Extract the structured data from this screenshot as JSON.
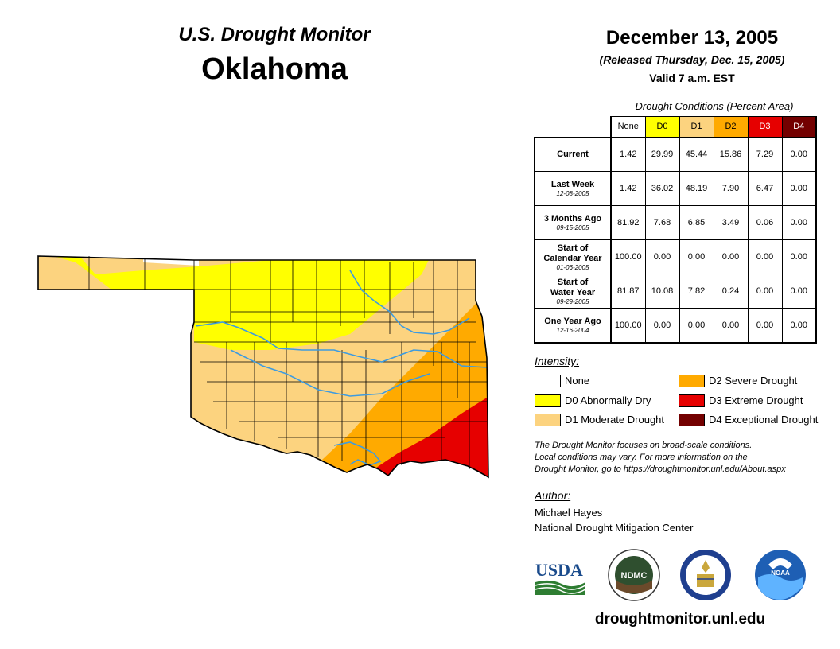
{
  "header": {
    "monitor_title": "U.S. Drought Monitor",
    "state": "Oklahoma",
    "date": "December 13, 2005",
    "released": "(Released Thursday, Dec. 15, 2005)",
    "valid": "Valid 7 a.m. EST"
  },
  "table": {
    "caption": "Drought Conditions (Percent Area)",
    "columns": [
      {
        "label": "None",
        "color": "#ffffff"
      },
      {
        "label": "D0",
        "color": "#ffff00"
      },
      {
        "label": "D1",
        "color": "#fcd37f"
      },
      {
        "label": "D2",
        "color": "#ffaa00"
      },
      {
        "label": "D3",
        "color": "#e60000"
      },
      {
        "label": "D4",
        "color": "#730000"
      }
    ],
    "rows": [
      {
        "label": "Current",
        "label2": "",
        "date": "",
        "values": [
          "1.42",
          "29.99",
          "45.44",
          "15.86",
          "7.29",
          "0.00"
        ]
      },
      {
        "label": "Last Week",
        "label2": "",
        "date": "12-08-2005",
        "values": [
          "1.42",
          "36.02",
          "48.19",
          "7.90",
          "6.47",
          "0.00"
        ]
      },
      {
        "label": "3 Months Ago",
        "label2": "",
        "date": "09-15-2005",
        "values": [
          "81.92",
          "7.68",
          "6.85",
          "3.49",
          "0.06",
          "0.00"
        ]
      },
      {
        "label": "Start of",
        "label2": "Calendar Year",
        "date": "01-06-2005",
        "values": [
          "100.00",
          "0.00",
          "0.00",
          "0.00",
          "0.00",
          "0.00"
        ]
      },
      {
        "label": "Start of",
        "label2": "Water Year",
        "date": "09-29-2005",
        "values": [
          "81.87",
          "10.08",
          "7.82",
          "0.24",
          "0.00",
          "0.00"
        ]
      },
      {
        "label": "One Year Ago",
        "label2": "",
        "date": "12-16-2004",
        "values": [
          "100.00",
          "0.00",
          "0.00",
          "0.00",
          "0.00",
          "0.00"
        ]
      }
    ]
  },
  "legend": {
    "title": "Intensity:",
    "items": [
      {
        "label": "None",
        "color": "#ffffff"
      },
      {
        "label": "D0 Abnormally Dry",
        "color": "#ffff00"
      },
      {
        "label": "D1 Moderate Drought",
        "color": "#fcd37f"
      },
      {
        "label": "D2 Severe Drought",
        "color": "#ffaa00"
      },
      {
        "label": "D3 Extreme Drought",
        "color": "#e60000"
      },
      {
        "label": "D4 Exceptional Drought",
        "color": "#730000"
      }
    ]
  },
  "note": {
    "line1": "The Drought Monitor focuses on broad-scale conditions.",
    "line2": "Local conditions may vary. For more information on the",
    "line3": "Drought Monitor, go to https://droughtmonitor.unl.edu/About.aspx"
  },
  "author": {
    "title": "Author:",
    "name": "Michael Hayes",
    "org": "National Drought Mitigation Center"
  },
  "logos": {
    "usda": "USDA",
    "ndmc": "NDMC",
    "noaa": "NOAA"
  },
  "footer": {
    "site": "droughtmonitor.unl.edu"
  },
  "map_colors": {
    "none": "#ffffff",
    "d0": "#ffff00",
    "d1": "#fcd37f",
    "d2": "#ffaa00",
    "d3": "#e60000",
    "rivers": "#3d9be0",
    "county_lines": "#000000"
  }
}
